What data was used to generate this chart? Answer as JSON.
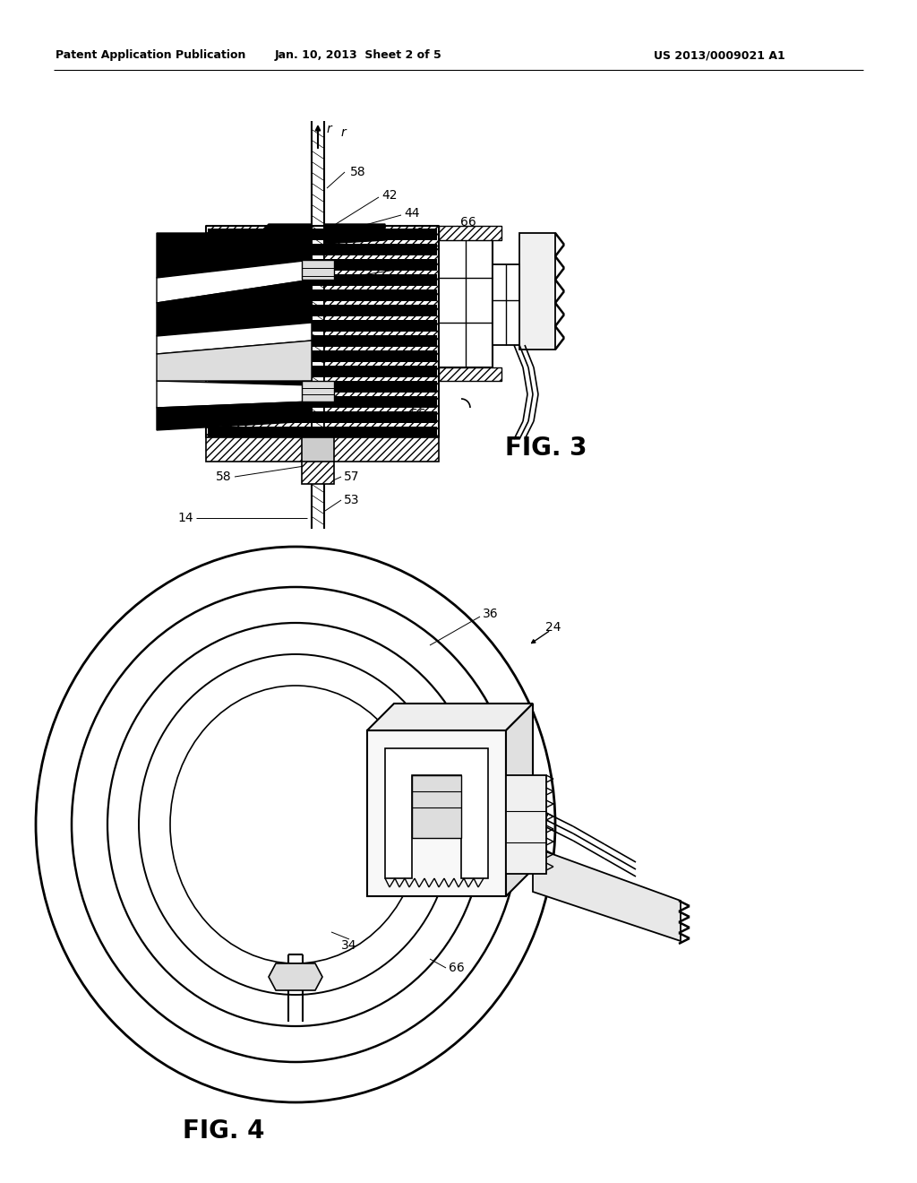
{
  "header_left": "Patent Application Publication",
  "header_center": "Jan. 10, 2013  Sheet 2 of 5",
  "header_right": "US 2013/0009021 A1",
  "fig3_label": "FIG. 3",
  "fig4_label": "FIG. 4",
  "background_color": "#ffffff",
  "line_color": "#000000",
  "header_fontsize": 9,
  "ref_fontsize": 10
}
